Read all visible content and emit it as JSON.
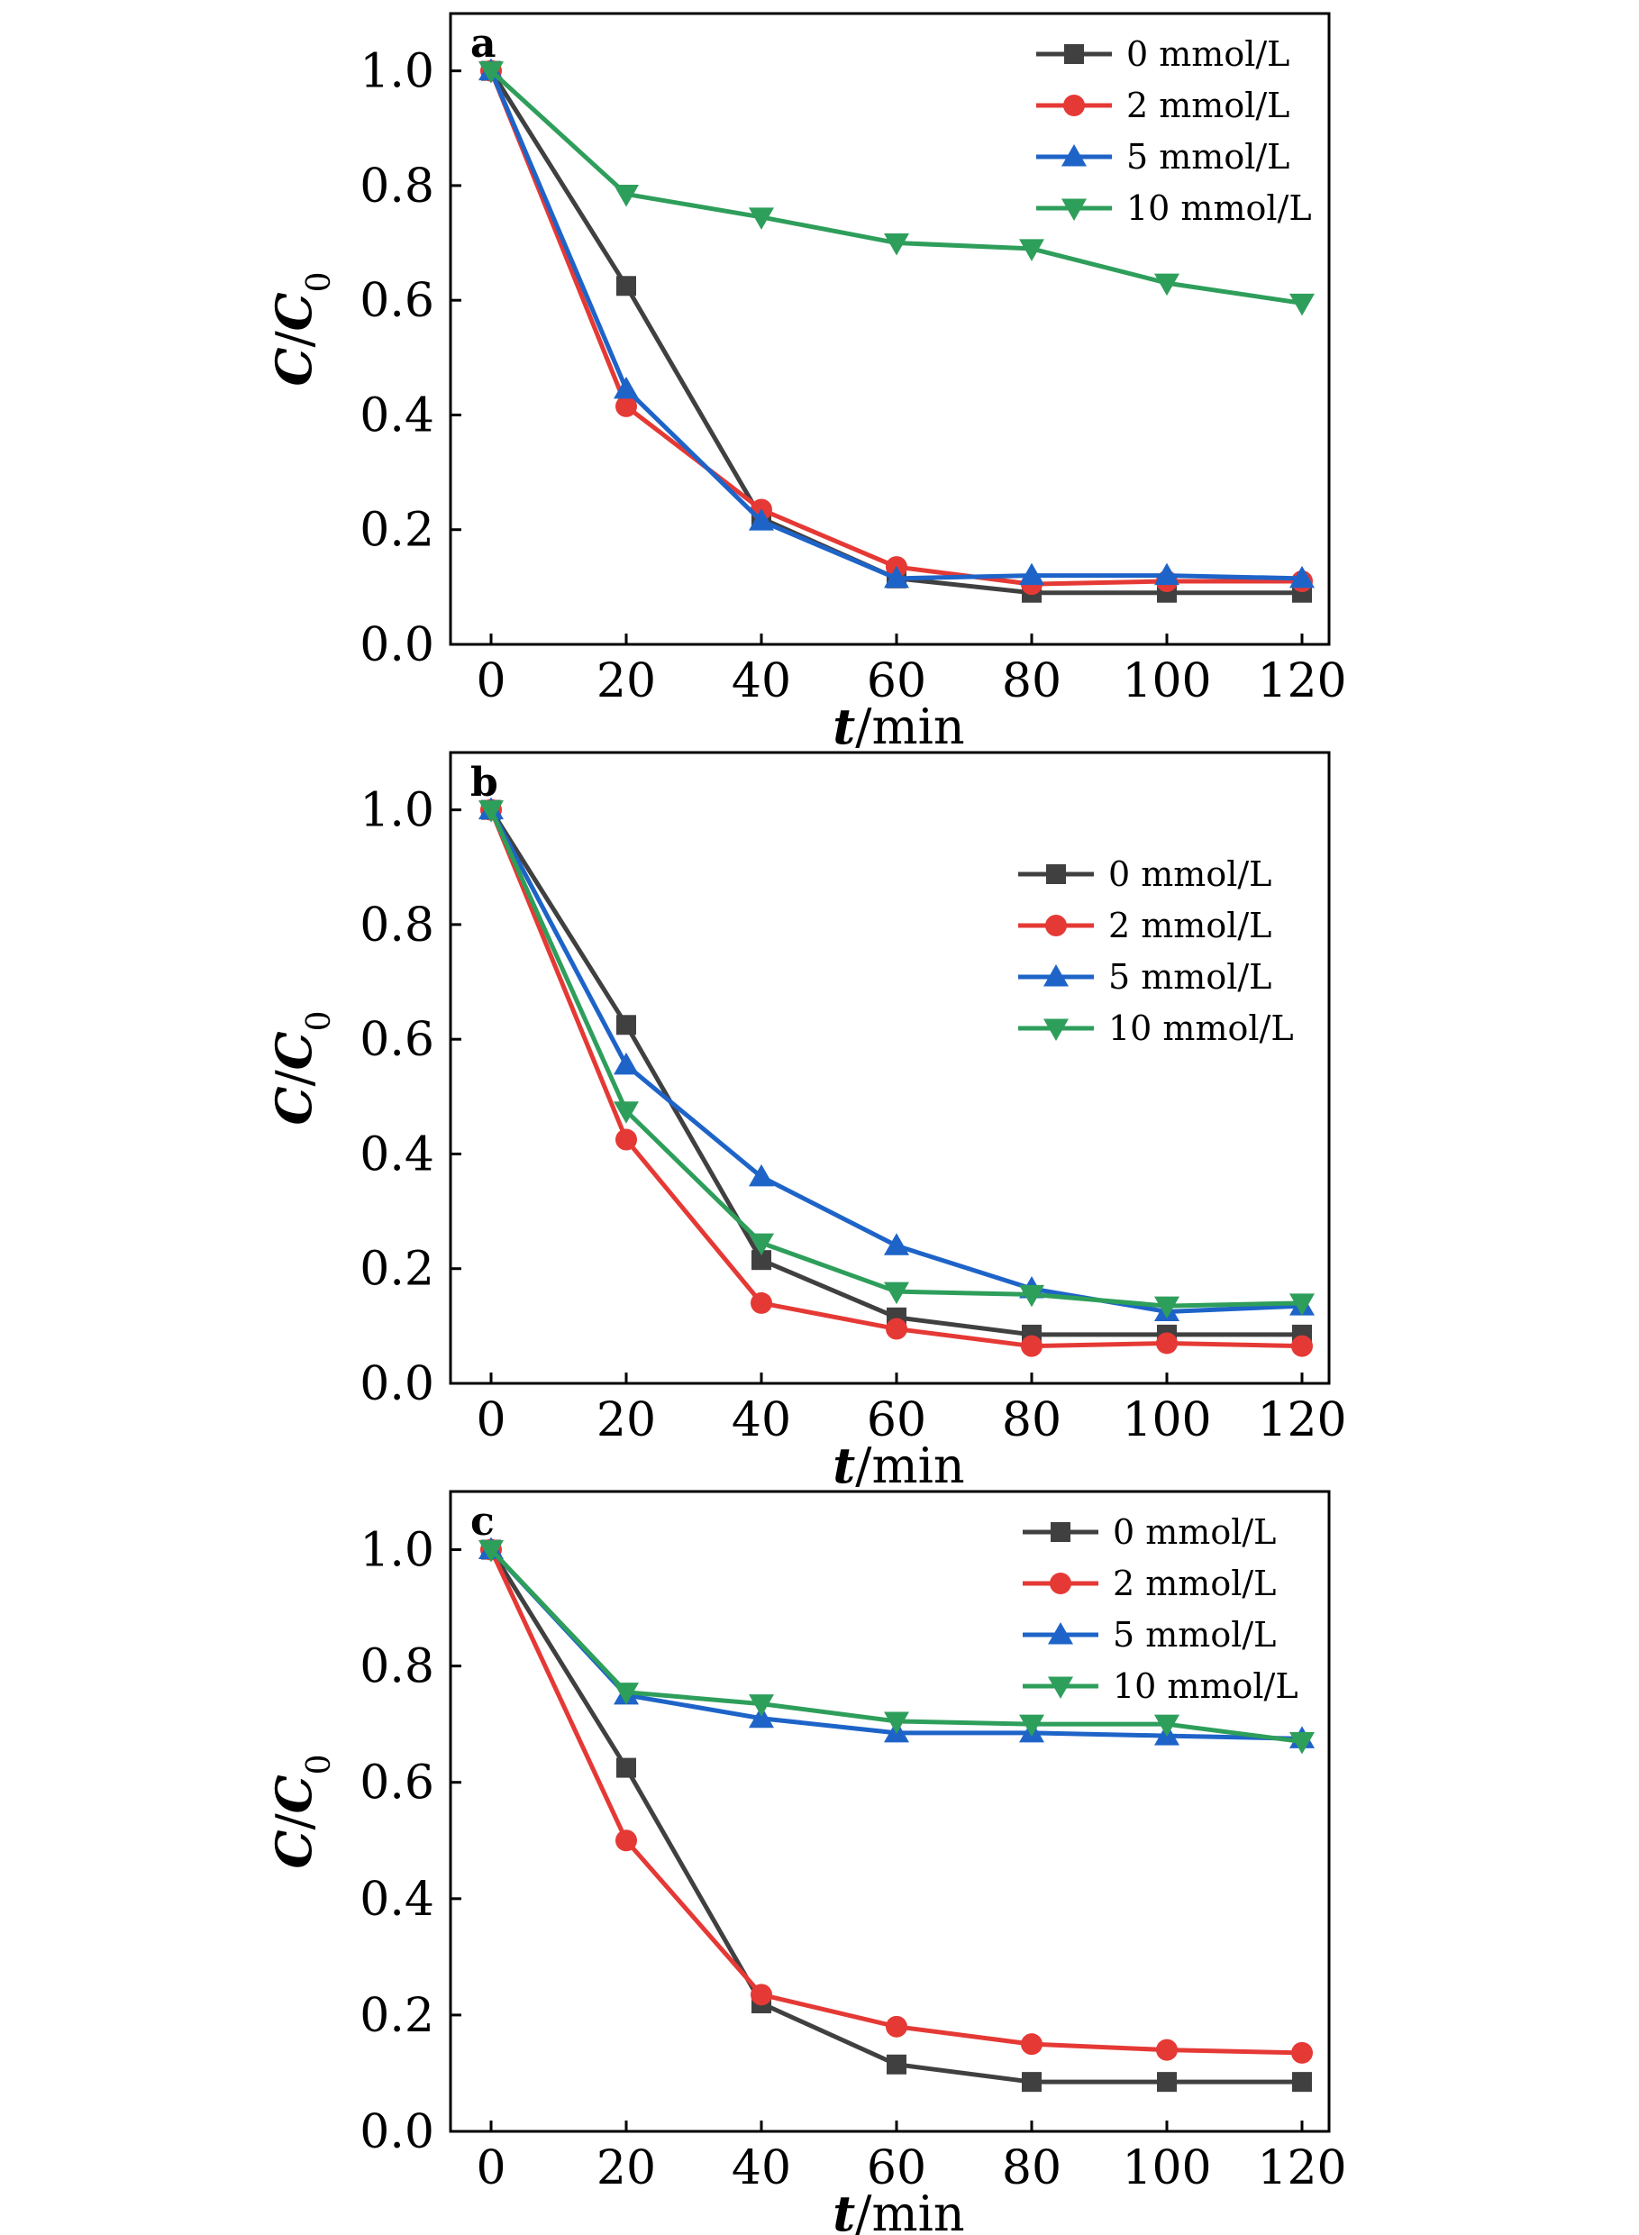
{
  "chart_data": [
    {
      "type": "line",
      "panel_label": "a",
      "xlabel": "t/min",
      "ylabel": "C/C0",
      "xlim": [
        -6,
        124
      ],
      "ylim": [
        0,
        1.1
      ],
      "x": [
        0,
        20,
        40,
        60,
        80,
        100,
        120
      ],
      "xticks": [
        "0",
        "20",
        "40",
        "60",
        "80",
        "100",
        "120"
      ],
      "yticks": [
        "0.0",
        "0.2",
        "0.4",
        "0.6",
        "0.8",
        "1.0"
      ],
      "legend_position": "top-right",
      "grid": false,
      "series": [
        {
          "name": "0 mmol/L",
          "marker": "square",
          "color": "#404040",
          "values": [
            1.0,
            0.625,
            0.22,
            0.115,
            0.09,
            0.09,
            0.09
          ]
        },
        {
          "name": "2 mmol/L",
          "marker": "circle",
          "color": "#e53935",
          "values": [
            1.0,
            0.415,
            0.235,
            0.135,
            0.105,
            0.11,
            0.11
          ]
        },
        {
          "name": "5 mmol/L",
          "marker": "triangle-up",
          "color": "#1e64c8",
          "values": [
            1.0,
            0.445,
            0.215,
            0.115,
            0.12,
            0.12,
            0.115
          ]
        },
        {
          "name": "10 mmol/L",
          "marker": "triangle-down",
          "color": "#2e9e5b",
          "values": [
            1.0,
            0.785,
            0.745,
            0.7,
            0.69,
            0.63,
            0.595
          ]
        }
      ]
    },
    {
      "type": "line",
      "panel_label": "b",
      "xlabel": "t/min",
      "ylabel": "C/C0",
      "xlim": [
        -6,
        124
      ],
      "ylim": [
        0,
        1.1
      ],
      "x": [
        0,
        20,
        40,
        60,
        80,
        100,
        120
      ],
      "xticks": [
        "0",
        "20",
        "40",
        "60",
        "80",
        "100",
        "120"
      ],
      "yticks": [
        "0.0",
        "0.2",
        "0.4",
        "0.6",
        "0.8",
        "1.0"
      ],
      "legend_position": "top-right",
      "grid": false,
      "series": [
        {
          "name": "0 mmol/L",
          "marker": "square",
          "color": "#404040",
          "values": [
            1.0,
            0.625,
            0.215,
            0.115,
            0.085,
            0.085,
            0.085
          ]
        },
        {
          "name": "2 mmol/L",
          "marker": "circle",
          "color": "#e53935",
          "values": [
            1.0,
            0.425,
            0.14,
            0.095,
            0.065,
            0.07,
            0.065
          ]
        },
        {
          "name": "5 mmol/L",
          "marker": "triangle-up",
          "color": "#1e64c8",
          "values": [
            1.0,
            0.555,
            0.36,
            0.24,
            0.165,
            0.125,
            0.135
          ]
        },
        {
          "name": "10 mmol/L",
          "marker": "triangle-down",
          "color": "#2e9e5b",
          "values": [
            1.0,
            0.475,
            0.245,
            0.16,
            0.155,
            0.135,
            0.14
          ]
        }
      ]
    },
    {
      "type": "line",
      "panel_label": "c",
      "xlabel": "t/min",
      "ylabel": "C/C0",
      "xlim": [
        -6,
        124
      ],
      "ylim": [
        0,
        1.1
      ],
      "x": [
        0,
        20,
        40,
        60,
        80,
        100,
        120
      ],
      "xticks": [
        "0",
        "20",
        "40",
        "60",
        "80",
        "100",
        "120"
      ],
      "yticks": [
        "0.0",
        "0.2",
        "0.4",
        "0.6",
        "0.8",
        "1.0"
      ],
      "legend_position": "top-right",
      "grid": false,
      "series": [
        {
          "name": "0 mmol/L",
          "marker": "square",
          "color": "#404040",
          "values": [
            1.0,
            0.625,
            0.22,
            0.115,
            0.085,
            0.085,
            0.085
          ]
        },
        {
          "name": "2 mmol/L",
          "marker": "circle",
          "color": "#e53935",
          "values": [
            1.0,
            0.5,
            0.235,
            0.18,
            0.15,
            0.14,
            0.135
          ]
        },
        {
          "name": "5 mmol/L",
          "marker": "triangle-up",
          "color": "#1e64c8",
          "values": [
            1.0,
            0.75,
            0.71,
            0.685,
            0.685,
            0.68,
            0.675
          ]
        },
        {
          "name": "10 mmol/L",
          "marker": "triangle-down",
          "color": "#2e9e5b",
          "values": [
            1.0,
            0.755,
            0.735,
            0.705,
            0.7,
            0.7,
            0.67
          ]
        }
      ]
    }
  ]
}
